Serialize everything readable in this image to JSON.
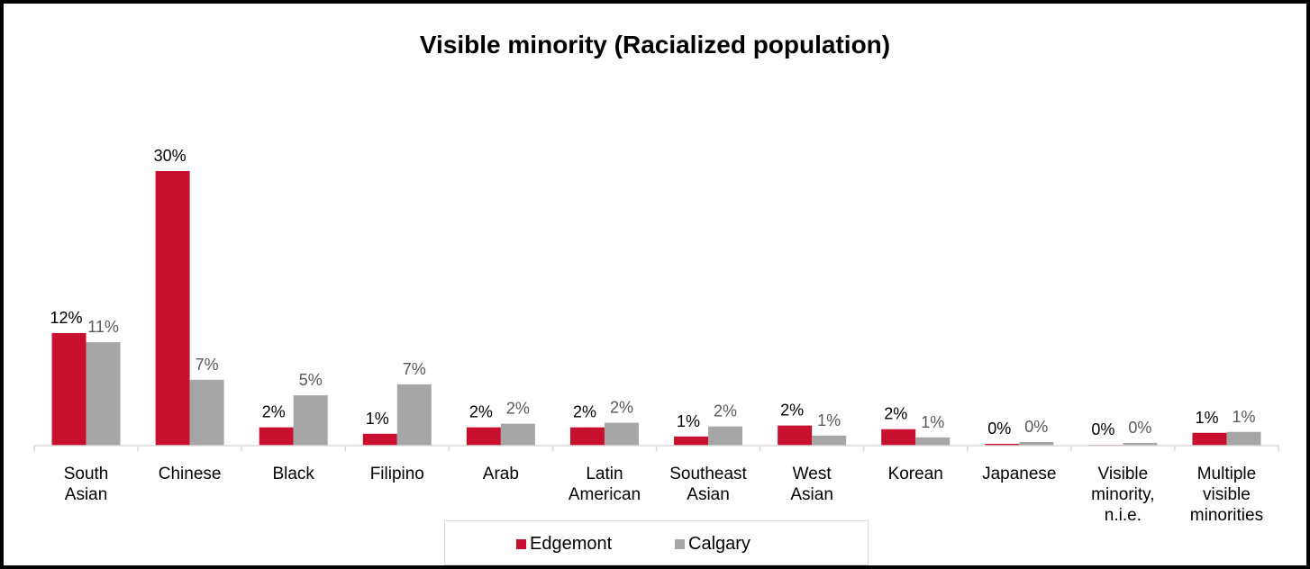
{
  "chart_data": {
    "type": "bar",
    "title": "Visible minority (Racialized population)",
    "categories": [
      [
        "South",
        "Asian"
      ],
      [
        "Chinese"
      ],
      [
        "Black"
      ],
      [
        "Filipino"
      ],
      [
        "Arab"
      ],
      [
        "Latin",
        "American"
      ],
      [
        "Southeast",
        "Asian"
      ],
      [
        "West",
        "Asian"
      ],
      [
        "Korean"
      ],
      [
        "Japanese"
      ],
      [
        "Visible",
        "minority,",
        "n.i.e."
      ],
      [
        "Multiple",
        "visible",
        "minorities"
      ]
    ],
    "series": [
      {
        "name": "Edgemont",
        "color": "#c8102e",
        "values": [
          12.3,
          30.0,
          2.0,
          1.3,
          2.0,
          2.0,
          1.0,
          2.2,
          1.8,
          0.2,
          0.0,
          1.4
        ],
        "labels": [
          "12%",
          "30%",
          "2%",
          "1%",
          "2%",
          "2%",
          "1%",
          "2%",
          "2%",
          "0%",
          "0%",
          "1%"
        ]
      },
      {
        "name": "Calgary",
        "color": "#a6a6a6",
        "values": [
          11.3,
          7.2,
          5.5,
          6.7,
          2.4,
          2.5,
          2.1,
          1.1,
          0.9,
          0.4,
          0.3,
          1.5
        ],
        "labels": [
          "11%",
          "7%",
          "5%",
          "7%",
          "2%",
          "2%",
          "2%",
          "1%",
          "1%",
          "0%",
          "0%",
          "1%"
        ]
      }
    ],
    "ylim": [
      0,
      32
    ],
    "xlabel": "",
    "ylabel": "",
    "grid": false,
    "legend_position": "bottom"
  }
}
